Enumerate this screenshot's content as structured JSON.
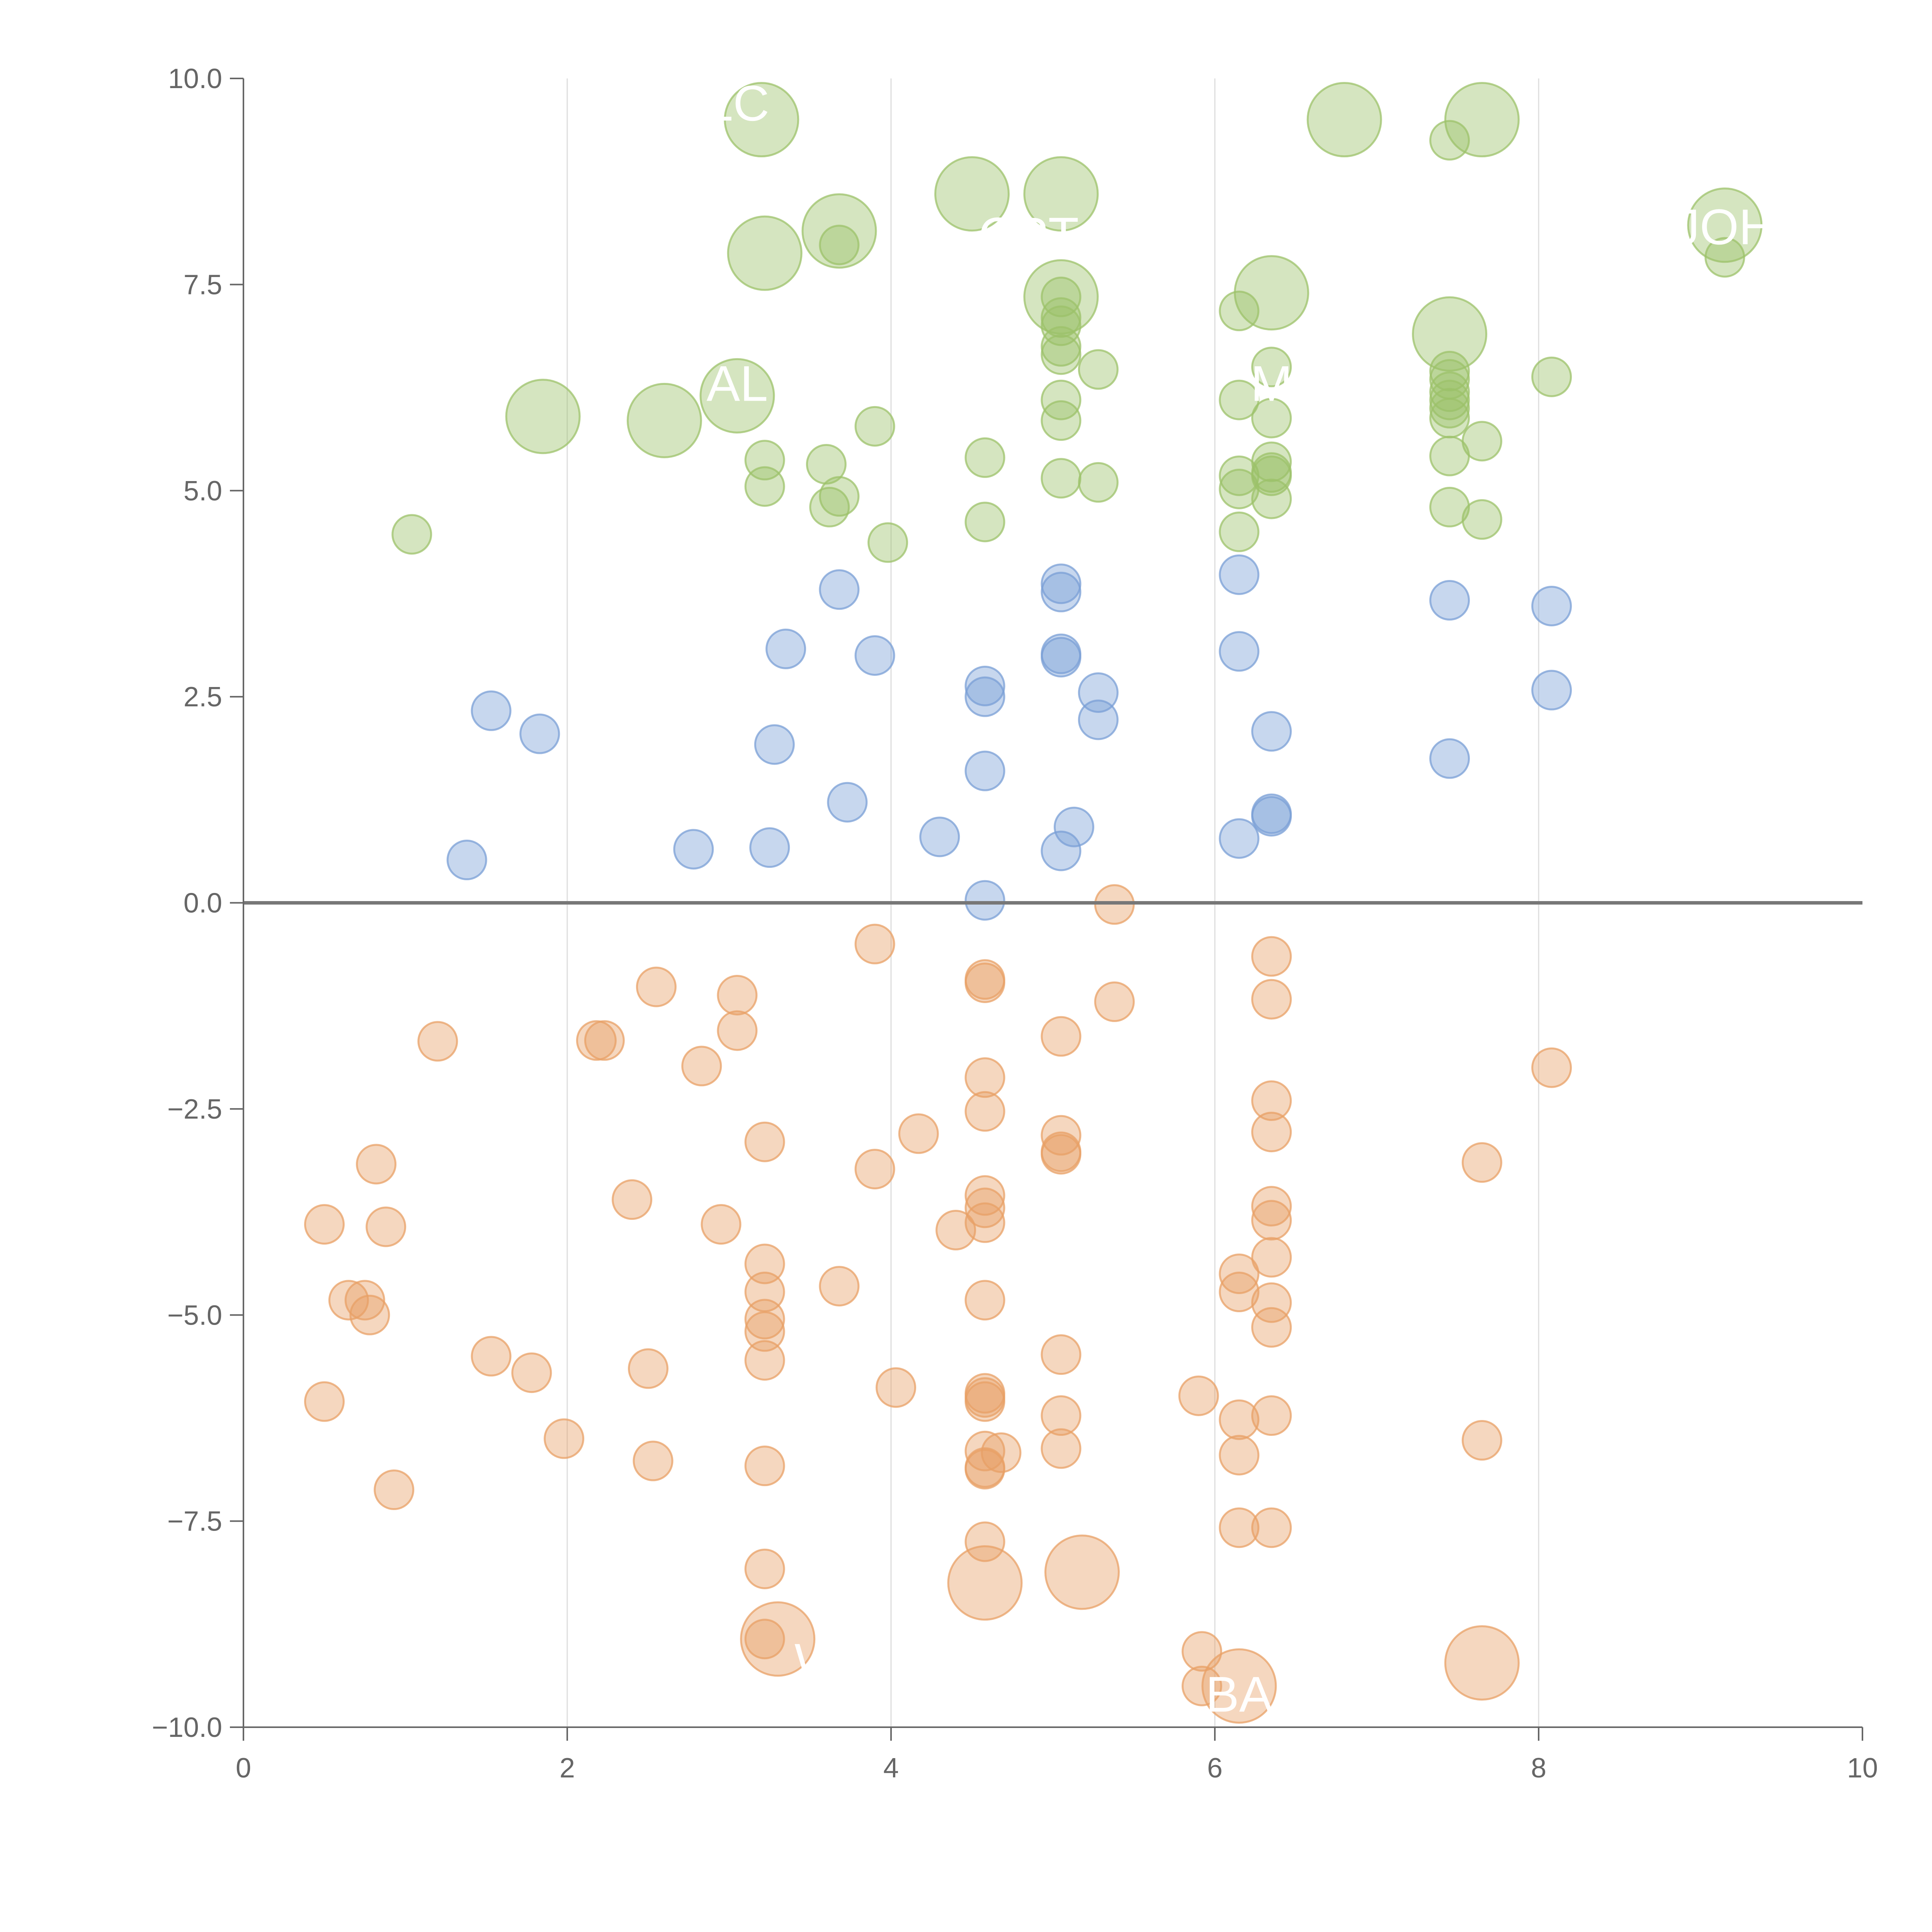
{
  "chart_data": {
    "type": "scatter",
    "title": "",
    "xlabel": "",
    "ylabel": "",
    "xlim": [
      0,
      10
    ],
    "ylim": [
      -10,
      10
    ],
    "x_ticks": [
      "0",
      "2",
      "4",
      "6",
      "8",
      "10"
    ],
    "y_ticks": [
      "10.0",
      "7.5",
      "5.0",
      "2.5",
      "0.0",
      "−2.5",
      "−5.0",
      "−7.5",
      "−10.0"
    ],
    "x_tick_values": [
      0,
      2,
      4,
      6,
      8,
      10
    ],
    "y_tick_values": [
      10,
      7.5,
      5,
      2.5,
      0,
      -2.5,
      -5,
      -7.5,
      -10
    ],
    "vertical_grid_x": [
      2,
      4,
      6,
      8
    ],
    "zero_line": true,
    "colors": {
      "green": "#9cc26a",
      "blue": "#7a9fd6",
      "orange": "#e8a066",
      "axis": "#666666",
      "grid": "#dddddd"
    },
    "labels": [
      {
        "text": "LC",
        "x": 3.05,
        "y": 9.7
      },
      {
        "text": "JOH",
        "x": 9.15,
        "y": 8.2
      },
      {
        "text": "CPT",
        "x": 4.85,
        "y": 8.1
      },
      {
        "text": "AL",
        "x": 3.05,
        "y": 6.3
      },
      {
        "text": "M",
        "x": 6.35,
        "y": 6.3
      },
      {
        "text": "W",
        "x": 3.55,
        "y": -9.2
      },
      {
        "text": "BA",
        "x": 6.15,
        "y": -9.6
      }
    ],
    "series": [
      {
        "color_key": "green",
        "points": [
          [
            3.2,
            9.5,
            2
          ],
          [
            6.8,
            9.5,
            2
          ],
          [
            7.65,
            9.5,
            2
          ],
          [
            7.45,
            9.25,
            1
          ],
          [
            4.5,
            8.6,
            2
          ],
          [
            5.05,
            8.6,
            2
          ],
          [
            3.68,
            8.15,
            2
          ],
          [
            3.68,
            7.98,
            1
          ],
          [
            3.22,
            7.88,
            2
          ],
          [
            9.15,
            8.22,
            2
          ],
          [
            9.15,
            7.83,
            1
          ],
          [
            5.05,
            7.35,
            2
          ],
          [
            5.05,
            7.35,
            1
          ],
          [
            5.05,
            7.1,
            1
          ],
          [
            5.05,
            7.0,
            1
          ],
          [
            6.35,
            7.4,
            2
          ],
          [
            6.15,
            7.18,
            1
          ],
          [
            7.45,
            6.9,
            2
          ],
          [
            5.05,
            6.75,
            1
          ],
          [
            5.05,
            6.65,
            1
          ],
          [
            5.28,
            6.47,
            1
          ],
          [
            6.35,
            6.5,
            1
          ],
          [
            6.15,
            6.1,
            1
          ],
          [
            6.35,
            5.88,
            1
          ],
          [
            7.45,
            6.45,
            1
          ],
          [
            7.45,
            6.35,
            1
          ],
          [
            7.45,
            6.2,
            1
          ],
          [
            7.45,
            6.1,
            1
          ],
          [
            7.45,
            6.0,
            1
          ],
          [
            7.45,
            5.88,
            1
          ],
          [
            8.08,
            6.38,
            1
          ],
          [
            7.65,
            5.6,
            1
          ],
          [
            1.85,
            5.9,
            2
          ],
          [
            2.6,
            5.85,
            2
          ],
          [
            3.05,
            6.15,
            2
          ],
          [
            3.9,
            5.78,
            1
          ],
          [
            3.22,
            5.37,
            1
          ],
          [
            3.22,
            5.05,
            1
          ],
          [
            3.6,
            5.32,
            1
          ],
          [
            3.68,
            4.93,
            1
          ],
          [
            3.62,
            4.8,
            1
          ],
          [
            3.98,
            4.37,
            1
          ],
          [
            4.58,
            5.4,
            1
          ],
          [
            4.58,
            4.62,
            1
          ],
          [
            5.05,
            6.1,
            1
          ],
          [
            5.05,
            5.85,
            1
          ],
          [
            5.05,
            5.15,
            1
          ],
          [
            5.28,
            5.1,
            1
          ],
          [
            6.15,
            5.18,
            1
          ],
          [
            6.15,
            5.02,
            1
          ],
          [
            6.15,
            4.5,
            1
          ],
          [
            6.35,
            5.35,
            1
          ],
          [
            6.35,
            5.22,
            1
          ],
          [
            6.35,
            5.18,
            1
          ],
          [
            6.35,
            4.9,
            1
          ],
          [
            7.45,
            5.42,
            1
          ],
          [
            7.45,
            4.8,
            1
          ],
          [
            7.65,
            4.65,
            1
          ],
          [
            1.04,
            4.47,
            1
          ]
        ]
      },
      {
        "color_key": "blue",
        "points": [
          [
            5.05,
            3.87,
            1
          ],
          [
            5.05,
            3.77,
            1
          ],
          [
            3.68,
            3.8,
            1
          ],
          [
            6.15,
            3.98,
            1
          ],
          [
            7.45,
            3.67,
            1
          ],
          [
            8.08,
            3.6,
            1
          ],
          [
            3.35,
            3.08,
            1
          ],
          [
            3.9,
            3.0,
            1
          ],
          [
            5.05,
            3.02,
            1
          ],
          [
            5.05,
            2.98,
            1
          ],
          [
            6.15,
            3.05,
            1
          ],
          [
            4.58,
            2.63,
            1
          ],
          [
            4.58,
            2.5,
            1
          ],
          [
            5.28,
            2.55,
            1
          ],
          [
            5.28,
            2.22,
            1
          ],
          [
            8.08,
            2.58,
            1
          ],
          [
            1.53,
            2.33,
            1
          ],
          [
            1.83,
            2.05,
            1
          ],
          [
            3.28,
            1.92,
            1
          ],
          [
            6.35,
            2.08,
            1
          ],
          [
            7.45,
            1.75,
            1
          ],
          [
            4.58,
            1.6,
            1
          ],
          [
            3.73,
            1.22,
            1
          ],
          [
            6.35,
            1.08,
            1
          ],
          [
            6.35,
            1.05,
            1
          ],
          [
            5.13,
            0.92,
            1
          ],
          [
            4.3,
            0.8,
            1
          ],
          [
            6.15,
            0.78,
            1
          ],
          [
            2.78,
            0.65,
            1
          ],
          [
            3.25,
            0.67,
            1
          ],
          [
            5.05,
            0.63,
            1
          ],
          [
            1.38,
            0.52,
            1
          ],
          [
            4.58,
            0.03,
            1
          ]
        ]
      },
      {
        "color_key": "orange",
        "points": [
          [
            5.38,
            -0.02,
            1
          ],
          [
            3.9,
            -0.5,
            1
          ],
          [
            6.35,
            -0.65,
            1
          ],
          [
            4.58,
            -0.93,
            1
          ],
          [
            4.58,
            -0.97,
            1
          ],
          [
            2.55,
            -1.02,
            1
          ],
          [
            3.05,
            -1.12,
            1
          ],
          [
            5.38,
            -1.2,
            1
          ],
          [
            6.35,
            -1.17,
            1
          ],
          [
            3.05,
            -1.55,
            1
          ],
          [
            5.05,
            -1.62,
            1
          ],
          [
            1.2,
            -1.68,
            1
          ],
          [
            2.18,
            -1.67,
            1
          ],
          [
            2.23,
            -1.67,
            1
          ],
          [
            2.83,
            -1.98,
            1
          ],
          [
            8.08,
            -2.0,
            1
          ],
          [
            4.58,
            -2.12,
            1
          ],
          [
            6.35,
            -2.4,
            1
          ],
          [
            4.58,
            -2.53,
            1
          ],
          [
            4.17,
            -2.8,
            1
          ],
          [
            5.05,
            -2.82,
            1
          ],
          [
            6.35,
            -2.78,
            1
          ],
          [
            3.22,
            -2.9,
            1
          ],
          [
            5.05,
            -3.02,
            1
          ],
          [
            5.05,
            -3.05,
            1
          ],
          [
            0.82,
            -3.17,
            1
          ],
          [
            3.9,
            -3.23,
            1
          ],
          [
            7.65,
            -3.15,
            1
          ],
          [
            4.58,
            -3.55,
            1
          ],
          [
            2.4,
            -3.6,
            1
          ],
          [
            4.58,
            -3.7,
            1
          ],
          [
            6.35,
            -3.68,
            1
          ],
          [
            6.35,
            -3.85,
            1
          ],
          [
            0.5,
            -3.9,
            1
          ],
          [
            0.88,
            -3.93,
            1
          ],
          [
            2.95,
            -3.9,
            1
          ],
          [
            4.58,
            -3.88,
            1
          ],
          [
            4.4,
            -3.97,
            1
          ],
          [
            3.22,
            -4.38,
            1
          ],
          [
            6.35,
            -4.3,
            1
          ],
          [
            6.15,
            -4.5,
            1
          ],
          [
            3.68,
            -4.65,
            1
          ],
          [
            3.22,
            -4.72,
            1
          ],
          [
            6.15,
            -4.72,
            1
          ],
          [
            0.65,
            -4.82,
            1
          ],
          [
            0.75,
            -4.82,
            1
          ],
          [
            4.58,
            -4.82,
            1
          ],
          [
            6.35,
            -4.85,
            1
          ],
          [
            0.78,
            -5.0,
            1
          ],
          [
            3.22,
            -5.05,
            1
          ],
          [
            3.22,
            -5.2,
            1
          ],
          [
            6.35,
            -5.15,
            1
          ],
          [
            1.53,
            -5.5,
            1
          ],
          [
            3.22,
            -5.55,
            1
          ],
          [
            5.05,
            -5.48,
            1
          ],
          [
            1.78,
            -5.7,
            1
          ],
          [
            2.5,
            -5.65,
            1
          ],
          [
            4.03,
            -5.88,
            1
          ],
          [
            5.9,
            -5.98,
            1
          ],
          [
            4.58,
            -5.95,
            1
          ],
          [
            4.58,
            -6.0,
            1
          ],
          [
            4.58,
            -6.05,
            1
          ],
          [
            0.5,
            -6.05,
            1
          ],
          [
            5.05,
            -6.22,
            1
          ],
          [
            6.15,
            -6.27,
            1
          ],
          [
            6.35,
            -6.22,
            1
          ],
          [
            1.98,
            -6.5,
            1
          ],
          [
            7.65,
            -6.52,
            1
          ],
          [
            4.58,
            -6.65,
            1
          ],
          [
            4.68,
            -6.67,
            1
          ],
          [
            5.05,
            -6.62,
            1
          ],
          [
            6.15,
            -6.7,
            1
          ],
          [
            2.53,
            -6.77,
            1
          ],
          [
            4.58,
            -6.85,
            1
          ],
          [
            4.58,
            -6.87,
            1
          ],
          [
            3.22,
            -6.83,
            1
          ],
          [
            0.93,
            -7.12,
            1
          ],
          [
            6.15,
            -7.58,
            1
          ],
          [
            6.35,
            -7.58,
            1
          ],
          [
            4.58,
            -7.75,
            1
          ],
          [
            3.22,
            -8.08,
            1
          ],
          [
            4.58,
            -8.25,
            2
          ],
          [
            5.18,
            -8.12,
            2
          ],
          [
            3.3,
            -8.93,
            2
          ],
          [
            3.22,
            -8.93,
            1
          ],
          [
            7.65,
            -9.22,
            2
          ],
          [
            5.92,
            -9.08,
            1
          ],
          [
            5.92,
            -9.5,
            1
          ],
          [
            6.15,
            -9.5,
            2
          ]
        ]
      }
    ]
  }
}
